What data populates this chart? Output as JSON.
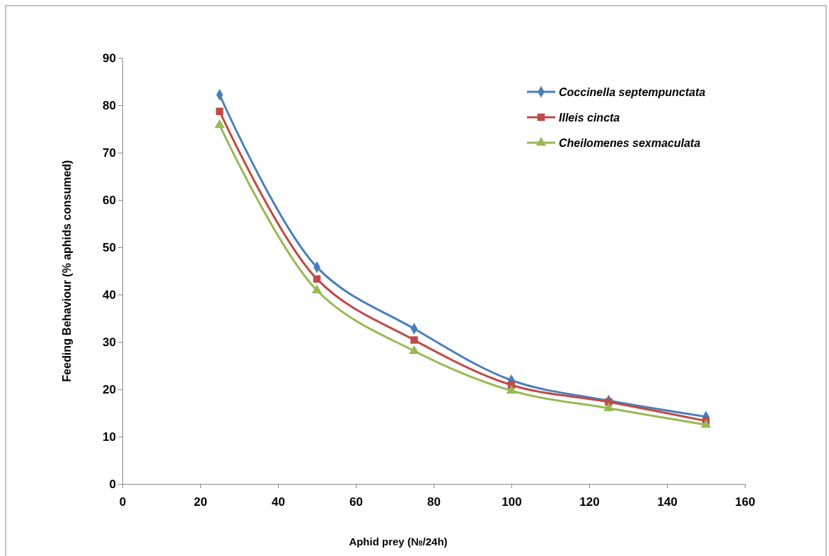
{
  "chart_data": {
    "type": "line",
    "xlabel": "Aphid prey (№/24h)",
    "ylabel": "Feeding Behaviour (% aphids consumed)",
    "x": [
      25,
      50,
      75,
      100,
      125,
      150
    ],
    "series": [
      {
        "name": "Coccinella septempunctata",
        "color": "#4a7ebb",
        "marker": "diamond",
        "values": [
          82.2,
          45.8,
          32.8,
          21.9,
          17.6,
          14.2
        ]
      },
      {
        "name": "Illeis cincta",
        "color": "#be4b48",
        "marker": "square",
        "values": [
          78.7,
          43.3,
          30.4,
          20.9,
          17.3,
          13.3
        ]
      },
      {
        "name": "Cheilomenes sexmaculata",
        "color": "#98b954",
        "marker": "triangle",
        "values": [
          75.8,
          40.9,
          28.1,
          19.7,
          16.0,
          12.5
        ]
      }
    ],
    "xlim": [
      0,
      160
    ],
    "xticks": [
      0,
      20,
      40,
      60,
      80,
      100,
      120,
      140,
      160
    ],
    "ylim": [
      0,
      90
    ],
    "yticks": [
      0,
      10,
      20,
      30,
      40,
      50,
      60,
      70,
      80,
      90
    ],
    "grid": false,
    "legend": "top right",
    "line_style": "solid"
  }
}
